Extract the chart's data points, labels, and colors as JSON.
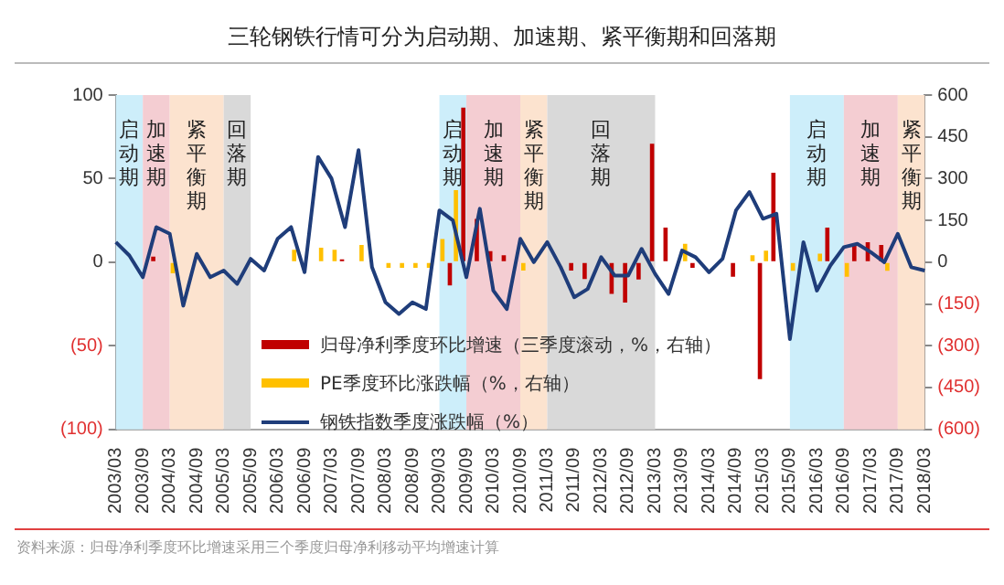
{
  "chart_data": {
    "type": "bar",
    "title": "三轮钢铁行情可分为启动期、加速期、紧平衡期和回落期",
    "categories": [
      "2003/03",
      null,
      "2003/09",
      null,
      "2004/03",
      null,
      "2004/09",
      null,
      "2005/03",
      null,
      "2005/09",
      null,
      "2006/03",
      null,
      "2006/09",
      null,
      "2007/03",
      null,
      "2007/09",
      null,
      "2008/03",
      null,
      "2008/09",
      null,
      "2009/03",
      null,
      "2009/09",
      null,
      "2010/03",
      null,
      "2010/09",
      null,
      "2011/03",
      null,
      "2011/09",
      null,
      "2012/03",
      null,
      "2012/09",
      null,
      "2013/03",
      null,
      "2013/09",
      null,
      "2014/03",
      null,
      "2014/09",
      null,
      "2015/03",
      null,
      "2015/09",
      null,
      "2016/03",
      null,
      "2016/09",
      null,
      "2017/03",
      null,
      "2017/09",
      null,
      "2018/03"
    ],
    "series": [
      {
        "name": "归母净利季度环比增速（三季度滚动，%，右轴）",
        "axis": "y2",
        "color": "#c00000",
        "values": [
          null,
          null,
          null,
          20,
          null,
          null,
          null,
          null,
          null,
          null,
          null,
          null,
          null,
          null,
          null,
          null,
          null,
          10,
          null,
          null,
          null,
          null,
          null,
          null,
          null,
          -83,
          555,
          155,
          40,
          25,
          null,
          null,
          null,
          null,
          -30,
          -60,
          null,
          -114,
          -145,
          -62,
          425,
          124,
          null,
          -20,
          null,
          null,
          -52,
          null,
          -420,
          321,
          null,
          null,
          null,
          124,
          null,
          62,
          72,
          62,
          null,
          null,
          null
        ]
      },
      {
        "name": "PE季度环比涨跌幅（%，右轴）",
        "axis": "y2",
        "color": "#ffc000",
        "values": [
          null,
          null,
          null,
          null,
          -40,
          null,
          null,
          null,
          null,
          null,
          null,
          null,
          null,
          45,
          null,
          52,
          45,
          null,
          62,
          null,
          -20,
          -20,
          -20,
          -20,
          83,
          259,
          null,
          null,
          null,
          null,
          -30,
          null,
          null,
          null,
          null,
          null,
          null,
          null,
          null,
          null,
          null,
          null,
          66,
          null,
          null,
          null,
          null,
          25,
          41,
          null,
          -31,
          null,
          31,
          null,
          -52,
          null,
          null,
          -31,
          null,
          null,
          null
        ]
      },
      {
        "name": "钢铁指数季度涨跌幅（%）",
        "type": "line",
        "color": "#1f3d7a",
        "values": [
          12,
          4,
          -9,
          21,
          17,
          -26,
          5,
          -9,
          -5,
          -13,
          2,
          -5,
          14,
          21,
          -6,
          63,
          50,
          21,
          67,
          -3,
          -24,
          -31,
          -24,
          -28,
          31,
          25,
          -9,
          32,
          -17,
          -28,
          14,
          0,
          12,
          -3,
          -21,
          -16,
          3,
          -8,
          -8,
          8,
          -7,
          -19,
          7,
          3,
          -6,
          2,
          31,
          42,
          26,
          29,
          -46,
          12,
          -17,
          -2,
          9,
          11,
          6,
          0,
          17,
          -3,
          -5
        ]
      }
    ],
    "ylim": [
      -100,
      100
    ],
    "yticks": [
      100,
      50,
      0,
      {
        "value": -50,
        "label": "(50)"
      },
      {
        "value": -100,
        "label": "(100)"
      }
    ],
    "y2lim": [
      -600,
      600
    ],
    "y2ticks": [
      600,
      450,
      300,
      150,
      0,
      {
        "value": -150,
        "label": "(150)"
      },
      {
        "value": -300,
        "label": "(300)"
      },
      {
        "value": -450,
        "label": "(450)"
      },
      {
        "value": -600,
        "label": "(600)"
      }
    ],
    "bands": [
      {
        "axis": "x",
        "from": "2003/03",
        "to": "2003/09",
        "label": "启动期",
        "color": "#cdeefa"
      },
      {
        "axis": "x",
        "from": "2003/09",
        "to": "2004/03",
        "label": "加速期",
        "color": "#f4cdd2"
      },
      {
        "axis": "x",
        "from": "2004/03",
        "to": "2005/03",
        "label": "紧平衡期",
        "color": "#fce3cf"
      },
      {
        "axis": "x",
        "from": "2005/03",
        "to": "2005/09",
        "label": "回落期",
        "color": "#d9d9d9"
      },
      {
        "axis": "x",
        "from": "2009/03",
        "to": "2009/09",
        "label": "启动期",
        "color": "#cdeefa"
      },
      {
        "axis": "x",
        "from": "2009/09",
        "to": "2010/09",
        "label": "加速期",
        "color": "#f4cdd2"
      },
      {
        "axis": "x",
        "from": "2010/09",
        "to": "2011/03",
        "label": "紧平衡期",
        "color": "#fce3cf"
      },
      {
        "axis": "x",
        "from": "2011/03",
        "to": "2013/03",
        "label": "回落期",
        "color": "#d9d9d9"
      },
      {
        "axis": "x",
        "from": "2015/09",
        "to": "2016/09",
        "label": "启动期",
        "color": "#cdeefa"
      },
      {
        "axis": "x",
        "from": "2016/09",
        "to": "2017/09",
        "label": "加速期",
        "color": "#f4cdd2"
      },
      {
        "axis": "x",
        "from": "2017/09",
        "to": "2018/03",
        "label": "紧平衡期",
        "color": "#fce3cf"
      }
    ],
    "legend": "bottom",
    "annotations": [
      "资料来源：归母净利季度环比增速采用三个季度归母净利移动平均增速计算"
    ]
  }
}
